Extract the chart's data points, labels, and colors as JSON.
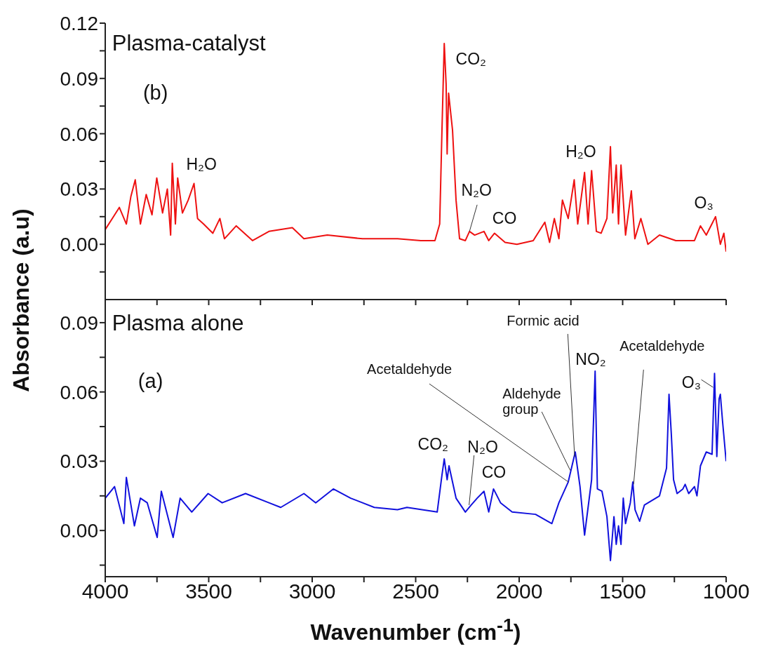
{
  "chart_data": [
    {
      "type": "line",
      "ylabel": "Absorbance (a.u)",
      "color": "#ee1111",
      "tick_labels": "y",
      "xlim": [
        4000,
        1000
      ],
      "xticks": [
        4000,
        {
          "value": 3750,
          "label": null
        },
        3500,
        {
          "value": 3250,
          "label": null
        },
        3000,
        {
          "value": 2750,
          "label": null
        },
        2500,
        {
          "value": 2250,
          "label": null
        },
        2000,
        {
          "value": 1750,
          "label": null
        },
        1500,
        {
          "value": 1250,
          "label": null
        },
        1000
      ],
      "ylim": [
        -0.03,
        0.12
      ],
      "yticks": [
        {
          "value": -0.015,
          "label": null
        },
        {
          "value": 0,
          "label": "0.00"
        },
        {
          "value": 0.015,
          "label": null
        },
        {
          "value": 0.03,
          "label": "0.03"
        },
        {
          "value": 0.045,
          "label": null
        },
        {
          "value": 0.06,
          "label": "0.06"
        },
        {
          "value": 0.075,
          "label": null
        },
        {
          "value": 0.09,
          "label": "0.09"
        },
        {
          "value": 0.105,
          "label": null
        },
        {
          "value": 0.12,
          "label": "0.12"
        }
      ],
      "x": [
        4000,
        3966,
        3932,
        3898,
        3876,
        3855,
        3830,
        3802,
        3774,
        3751,
        3723,
        3700,
        3684,
        3676,
        3661,
        3650,
        3627,
        3599,
        3571,
        3554,
        3525,
        3480,
        3446,
        3424,
        3367,
        3288,
        3209,
        3096,
        3040,
        2927,
        2757,
        2588,
        2475,
        2407,
        2384,
        2373,
        2362,
        2353,
        2348,
        2341,
        2322,
        2305,
        2288,
        2260,
        2240,
        2215,
        2170,
        2147,
        2119,
        2068,
        2011,
        1932,
        1876,
        1853,
        1830,
        1808,
        1791,
        1763,
        1734,
        1717,
        1684,
        1667,
        1650,
        1627,
        1604,
        1576,
        1559,
        1548,
        1531,
        1520,
        1508,
        1486,
        1458,
        1441,
        1412,
        1378,
        1322,
        1243,
        1153,
        1124,
        1096,
        1051,
        1028,
        1011,
        1000
      ],
      "values": [
        0.008,
        0.014,
        0.02,
        0.011,
        0.026,
        0.035,
        0.011,
        0.027,
        0.016,
        0.036,
        0.017,
        0.03,
        0.005,
        0.044,
        0.011,
        0.036,
        0.017,
        0.024,
        0.033,
        0.014,
        0.011,
        0.006,
        0.014,
        0.003,
        0.01,
        0.002,
        0.007,
        0.009,
        0.003,
        0.005,
        0.003,
        0.003,
        0.002,
        0.002,
        0.011,
        0.062,
        0.109,
        0.087,
        0.049,
        0.082,
        0.062,
        0.024,
        0.003,
        0.002,
        0.007,
        0.005,
        0.007,
        0.002,
        0.006,
        0.001,
        0.0,
        0.002,
        0.012,
        0.001,
        0.014,
        0.003,
        0.024,
        0.014,
        0.035,
        0.011,
        0.039,
        0.011,
        0.04,
        0.007,
        0.006,
        0.014,
        0.053,
        0.017,
        0.043,
        0.011,
        0.043,
        0.005,
        0.029,
        0.003,
        0.014,
        0.0,
        0.005,
        0.002,
        0.002,
        0.01,
        0.005,
        0.015,
        0.0,
        0.006,
        -0.004
      ],
      "annotations": [
        "Plasma-catalyst",
        "(b)",
        "H₂O",
        "CO₂",
        {
          "text": "N₂O",
          "x": 2240,
          "y": 0.007
        },
        "CO",
        "H₂O",
        "O₃"
      ]
    },
    {
      "type": "line",
      "xlabel": "Wavenumber (cm$^{-1}$)",
      "color": "#1111dd",
      "xlim": [
        4000,
        1000
      ],
      "xticks": [
        4000,
        {
          "value": 3750,
          "label": null
        },
        3500,
        {
          "value": 3250,
          "label": null
        },
        3000,
        {
          "value": 2750,
          "label": null
        },
        2500,
        {
          "value": 2250,
          "label": null
        },
        2000,
        {
          "value": 1750,
          "label": null
        },
        1500,
        {
          "value": 1250,
          "label": null
        },
        1000
      ],
      "ylim": [
        -0.02,
        0.1
      ],
      "yticks": [
        {
          "value": -0.015,
          "label": null
        },
        {
          "value": 0,
          "label": "0.00"
        },
        {
          "value": 0.015,
          "label": null
        },
        {
          "value": 0.03,
          "label": "0.03"
        },
        {
          "value": 0.045,
          "label": null
        },
        {
          "value": 0.06,
          "label": "0.06"
        },
        {
          "value": 0.075,
          "label": null
        },
        {
          "value": 0.09,
          "label": "0.09"
        }
      ],
      "x": [
        4000,
        3955,
        3910,
        3898,
        3859,
        3830,
        3797,
        3749,
        3729,
        3672,
        3638,
        3582,
        3503,
        3435,
        3322,
        3209,
        3152,
        3040,
        2983,
        2898,
        2814,
        2757,
        2700,
        2588,
        2542,
        2396,
        2373,
        2362,
        2348,
        2339,
        2305,
        2260,
        2232,
        2203,
        2170,
        2147,
        2124,
        2090,
        2034,
        1921,
        1842,
        1808,
        1763,
        1729,
        1706,
        1684,
        1650,
        1633,
        1622,
        1600,
        1576,
        1559,
        1542,
        1531,
        1520,
        1508,
        1497,
        1486,
        1463,
        1451,
        1440,
        1418,
        1395,
        1322,
        1288,
        1276,
        1265,
        1254,
        1237,
        1209,
        1198,
        1181,
        1153,
        1141,
        1124,
        1096,
        1068,
        1056,
        1045,
        1034,
        1028,
        1017,
        1000
      ],
      "values": [
        0.014,
        0.019,
        0.003,
        0.023,
        0.002,
        0.014,
        0.012,
        -0.003,
        0.017,
        -0.003,
        0.014,
        0.008,
        0.016,
        0.012,
        0.016,
        0.012,
        0.01,
        0.016,
        0.012,
        0.018,
        0.014,
        0.012,
        0.01,
        0.009,
        0.01,
        0.008,
        0.024,
        0.031,
        0.022,
        0.028,
        0.014,
        0.008,
        0.011,
        0.014,
        0.017,
        0.008,
        0.018,
        0.012,
        0.008,
        0.007,
        0.003,
        0.012,
        0.021,
        0.034,
        0.019,
        -0.002,
        0.022,
        0.069,
        0.018,
        0.017,
        0.006,
        -0.013,
        0.006,
        -0.006,
        0.002,
        -0.006,
        0.014,
        0.003,
        0.012,
        0.021,
        0.009,
        0.004,
        0.011,
        0.015,
        0.027,
        0.059,
        0.042,
        0.022,
        0.016,
        0.018,
        0.02,
        0.016,
        0.019,
        0.015,
        0.028,
        0.034,
        0.033,
        0.068,
        0.032,
        0.057,
        0.059,
        0.047,
        0.03
      ],
      "annotations": [
        "Plasma alone",
        "(a)",
        {
          "text": "Acetaldehyde",
          "x": 1762,
          "y": 0.021
        },
        {
          "text": "Aldehyde\ngroup",
          "x": 1753,
          "y": 0.026
        },
        {
          "text": "Formic acid",
          "x": 1732,
          "y": 0.032
        },
        "NO₂",
        {
          "text": "Acetaldehyde",
          "x": 1447,
          "y": 0.02
        },
        {
          "text": "O₃",
          "x": 1063,
          "y": 0.062
        },
        "CO₂",
        {
          "text": "N₂O",
          "x": 2242,
          "y": 0.011
        },
        "CO"
      ]
    }
  ]
}
